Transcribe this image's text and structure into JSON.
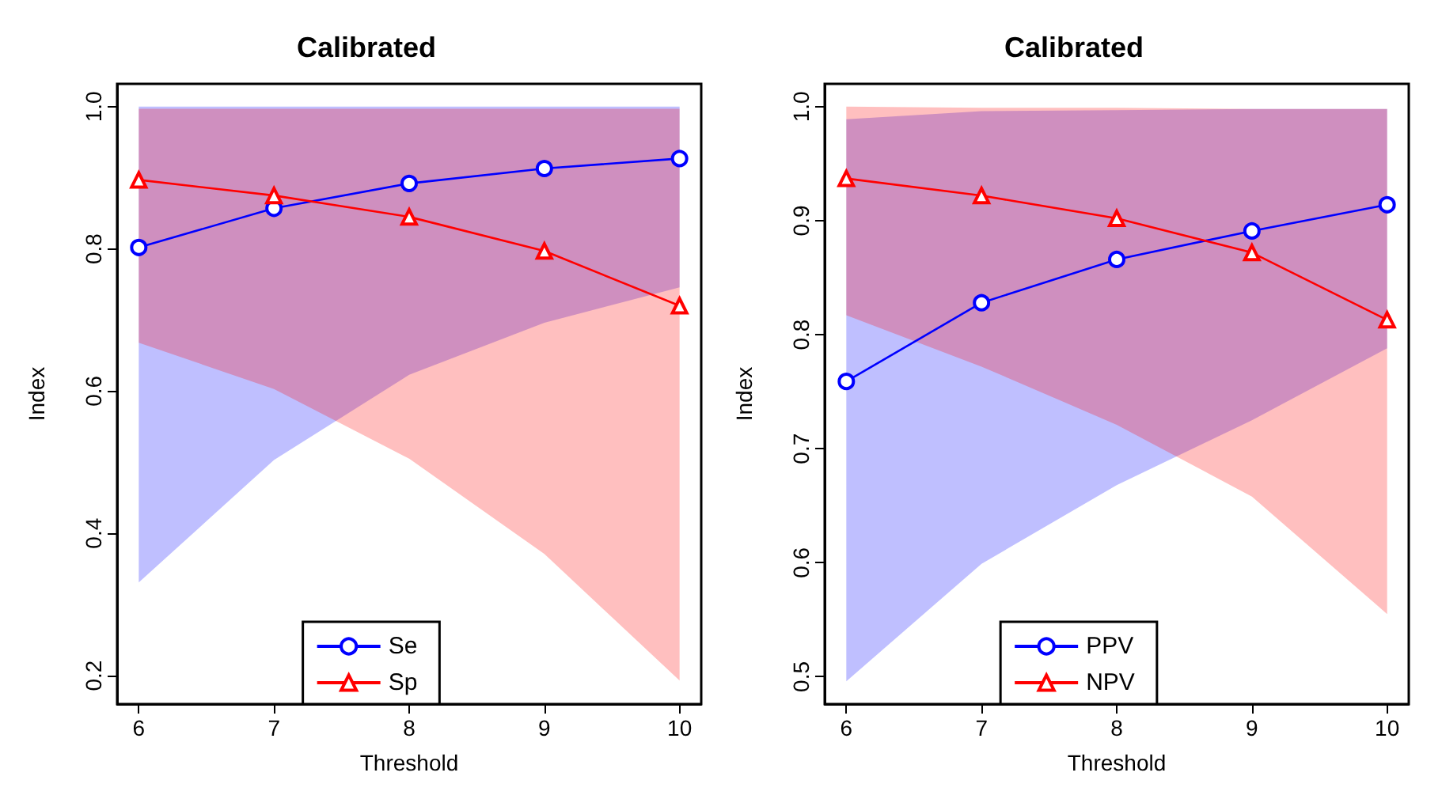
{
  "chart_data": [
    {
      "type": "line",
      "title": "Calibrated",
      "xlabel": "Threshold",
      "ylabel": "Index",
      "x": [
        6,
        7,
        8,
        9,
        10
      ],
      "xlim": [
        5.84,
        10.16
      ],
      "xticks": [
        6,
        7,
        8,
        9,
        10
      ],
      "ylim": [
        0.16,
        1.032
      ],
      "yticks": [
        0.2,
        0.4,
        0.6,
        0.8,
        {
          "value": 1,
          "label": "1.0"
        }
      ],
      "grid": false,
      "legend": "bottom",
      "line_style": "solid",
      "series": [
        {
          "name": "Se",
          "color": "#0000ff",
          "marker": "circle",
          "values": [
            0.802,
            0.857,
            0.892,
            0.913,
            0.927
          ],
          "lower": [
            0.331,
            0.503,
            0.623,
            0.696,
            0.746
          ],
          "upper": [
            1.0,
            1.0,
            1.0,
            1.0,
            1.0
          ]
        },
        {
          "name": "Sp",
          "color": "#ff0000",
          "marker": "triangle",
          "values": [
            0.897,
            0.875,
            0.845,
            0.797,
            0.72
          ],
          "lower": [
            0.668,
            0.603,
            0.505,
            0.371,
            0.193
          ],
          "upper": [
            0.997,
            0.997,
            0.997,
            0.997,
            0.997
          ]
        }
      ]
    },
    {
      "type": "line",
      "title": "Calibrated",
      "xlabel": "Threshold",
      "ylabel": "Index",
      "x": [
        6,
        7,
        8,
        9,
        10
      ],
      "xlim": [
        5.84,
        10.16
      ],
      "xticks": [
        6,
        7,
        8,
        9,
        10
      ],
      "ylim": [
        0.476,
        1.02
      ],
      "yticks": [
        0.5,
        0.6,
        0.7,
        0.8,
        0.9,
        {
          "value": 1,
          "label": "1.0"
        }
      ],
      "grid": false,
      "legend": "bottom",
      "line_style": "solid",
      "series": [
        {
          "name": "PPV",
          "color": "#0000ff",
          "marker": "circle",
          "values": [
            0.759,
            0.828,
            0.866,
            0.891,
            0.914
          ],
          "lower": [
            0.496,
            0.599,
            0.668,
            0.725,
            0.788
          ],
          "upper": [
            0.989,
            0.996,
            0.997,
            0.998,
            0.998
          ]
        },
        {
          "name": "NPV",
          "color": "#ff0000",
          "marker": "triangle",
          "values": [
            0.937,
            0.922,
            0.902,
            0.872,
            0.813
          ],
          "lower": [
            0.817,
            0.772,
            0.721,
            0.658,
            0.555
          ],
          "upper": [
            1.0,
            0.999,
            0.999,
            0.998,
            0.998
          ]
        }
      ]
    }
  ]
}
